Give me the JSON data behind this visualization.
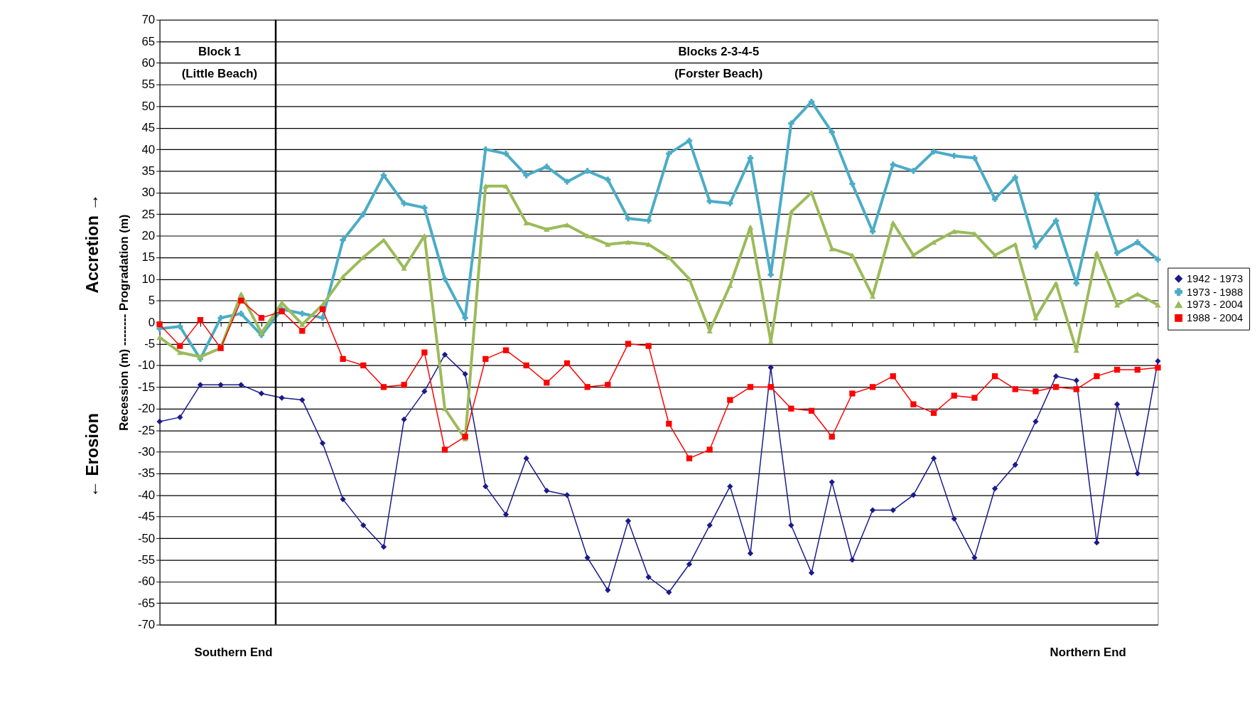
{
  "chart_data": {
    "type": "line",
    "ylabel": "Recession (m) -------- Progradation (m)",
    "annotations": [
      "Accretion →",
      "← Erosion",
      "Block 1\n(Little Beach)",
      "Blocks 2-3-4-5\n(Forster Beach)",
      "Southern End",
      "Northern End"
    ],
    "categories": [
      null,
      null,
      null,
      null,
      null,
      null,
      null,
      null,
      null,
      null,
      null,
      null,
      null,
      null,
      null,
      null,
      null,
      null,
      null,
      null,
      null,
      null,
      null,
      null,
      null,
      null,
      null,
      null,
      null,
      null,
      null,
      null,
      null,
      null,
      null,
      null,
      null,
      null,
      null,
      null,
      null,
      null,
      null,
      null,
      null,
      null,
      null,
      null,
      null,
      null
    ],
    "ylim": [
      -70,
      70
    ],
    "yticks": [
      -70,
      -65,
      -60,
      -55,
      -50,
      -45,
      -40,
      -35,
      -30,
      -25,
      -20,
      -15,
      -10,
      -5,
      0,
      5,
      10,
      15,
      20,
      25,
      30,
      35,
      40,
      45,
      50,
      55,
      60,
      65,
      70
    ],
    "tick_labels": "y",
    "grid": "y",
    "legend": "right",
    "line_style": "solid",
    "series": [
      {
        "name": "1942 - 1973",
        "color": "#1a1a8c",
        "marker": "diamond",
        "values": [
          -23,
          -22,
          -14.5,
          -14.5,
          -14.5,
          -16.5,
          -17.5,
          -18,
          -28,
          -41,
          -47,
          -52,
          -22.5,
          -16,
          -7.5,
          -12,
          -38,
          -44.5,
          -31.5,
          -39,
          -40,
          -54.5,
          -62,
          -46,
          -59,
          -62.5,
          -56,
          -47,
          -38,
          -53.5,
          -10.5,
          -47,
          -58,
          -37,
          -55,
          -43.5,
          -43.5,
          -40,
          -31.5,
          -45.5,
          -54.5,
          -38.5,
          -33,
          -23,
          -12.5,
          -13.5,
          -51,
          -19,
          -35,
          -9
        ]
      },
      {
        "name": "1973 - 1988",
        "color": "#4bacc6",
        "marker": "cross",
        "values": [
          -1.5,
          -1,
          -8.5,
          1,
          2,
          -3,
          3,
          2,
          1,
          19,
          25,
          34,
          27.5,
          26.5,
          10,
          1,
          40,
          39,
          34,
          36,
          32.5,
          35,
          33,
          24,
          23.5,
          39,
          42,
          28,
          27.5,
          38,
          11,
          46,
          51,
          44,
          32,
          21,
          36.5,
          35,
          39.5,
          38.5,
          38,
          28.5,
          33.5,
          17.5,
          23.5,
          9,
          29.5,
          16,
          18.5,
          14.5
        ]
      },
      {
        "name": "1973 - 2004",
        "color": "#9bbb59",
        "marker": "triangle",
        "values": [
          -3.5,
          -7,
          -8,
          -6,
          6.5,
          -2.5,
          4.5,
          -0.5,
          4,
          10.5,
          15,
          19,
          12.5,
          20,
          -20,
          -27,
          31.5,
          31.5,
          23,
          21.5,
          22.5,
          20,
          18,
          18.5,
          18,
          15,
          10,
          -2,
          8.5,
          22,
          -4.5,
          25.5,
          30,
          17,
          15.5,
          6,
          23,
          15.5,
          18.5,
          21,
          20.5,
          15.5,
          18,
          1,
          9,
          -6.5,
          16,
          4,
          6.5,
          4
        ]
      },
      {
        "name": "1988 - 2004",
        "color": "#ff0000",
        "marker": "square",
        "values": [
          -0.5,
          -5.5,
          0.5,
          -6,
          5,
          1,
          2.5,
          -2,
          3,
          -8.5,
          -10,
          -15,
          -14.5,
          -7,
          -29.5,
          -26.5,
          -8.5,
          -6.5,
          -10,
          -14,
          -9.5,
          -15,
          -14.5,
          -5,
          -5.5,
          -23.5,
          -31.5,
          -29.5,
          -18,
          -15,
          -15,
          -20,
          -20.5,
          -26.5,
          -16.5,
          -15,
          -12.5,
          -19,
          -21,
          -17,
          -17.5,
          -12.5,
          -15.5,
          -16,
          -15,
          -15.5,
          -12.5,
          -11,
          -11,
          -10.5
        ]
      }
    ]
  }
}
